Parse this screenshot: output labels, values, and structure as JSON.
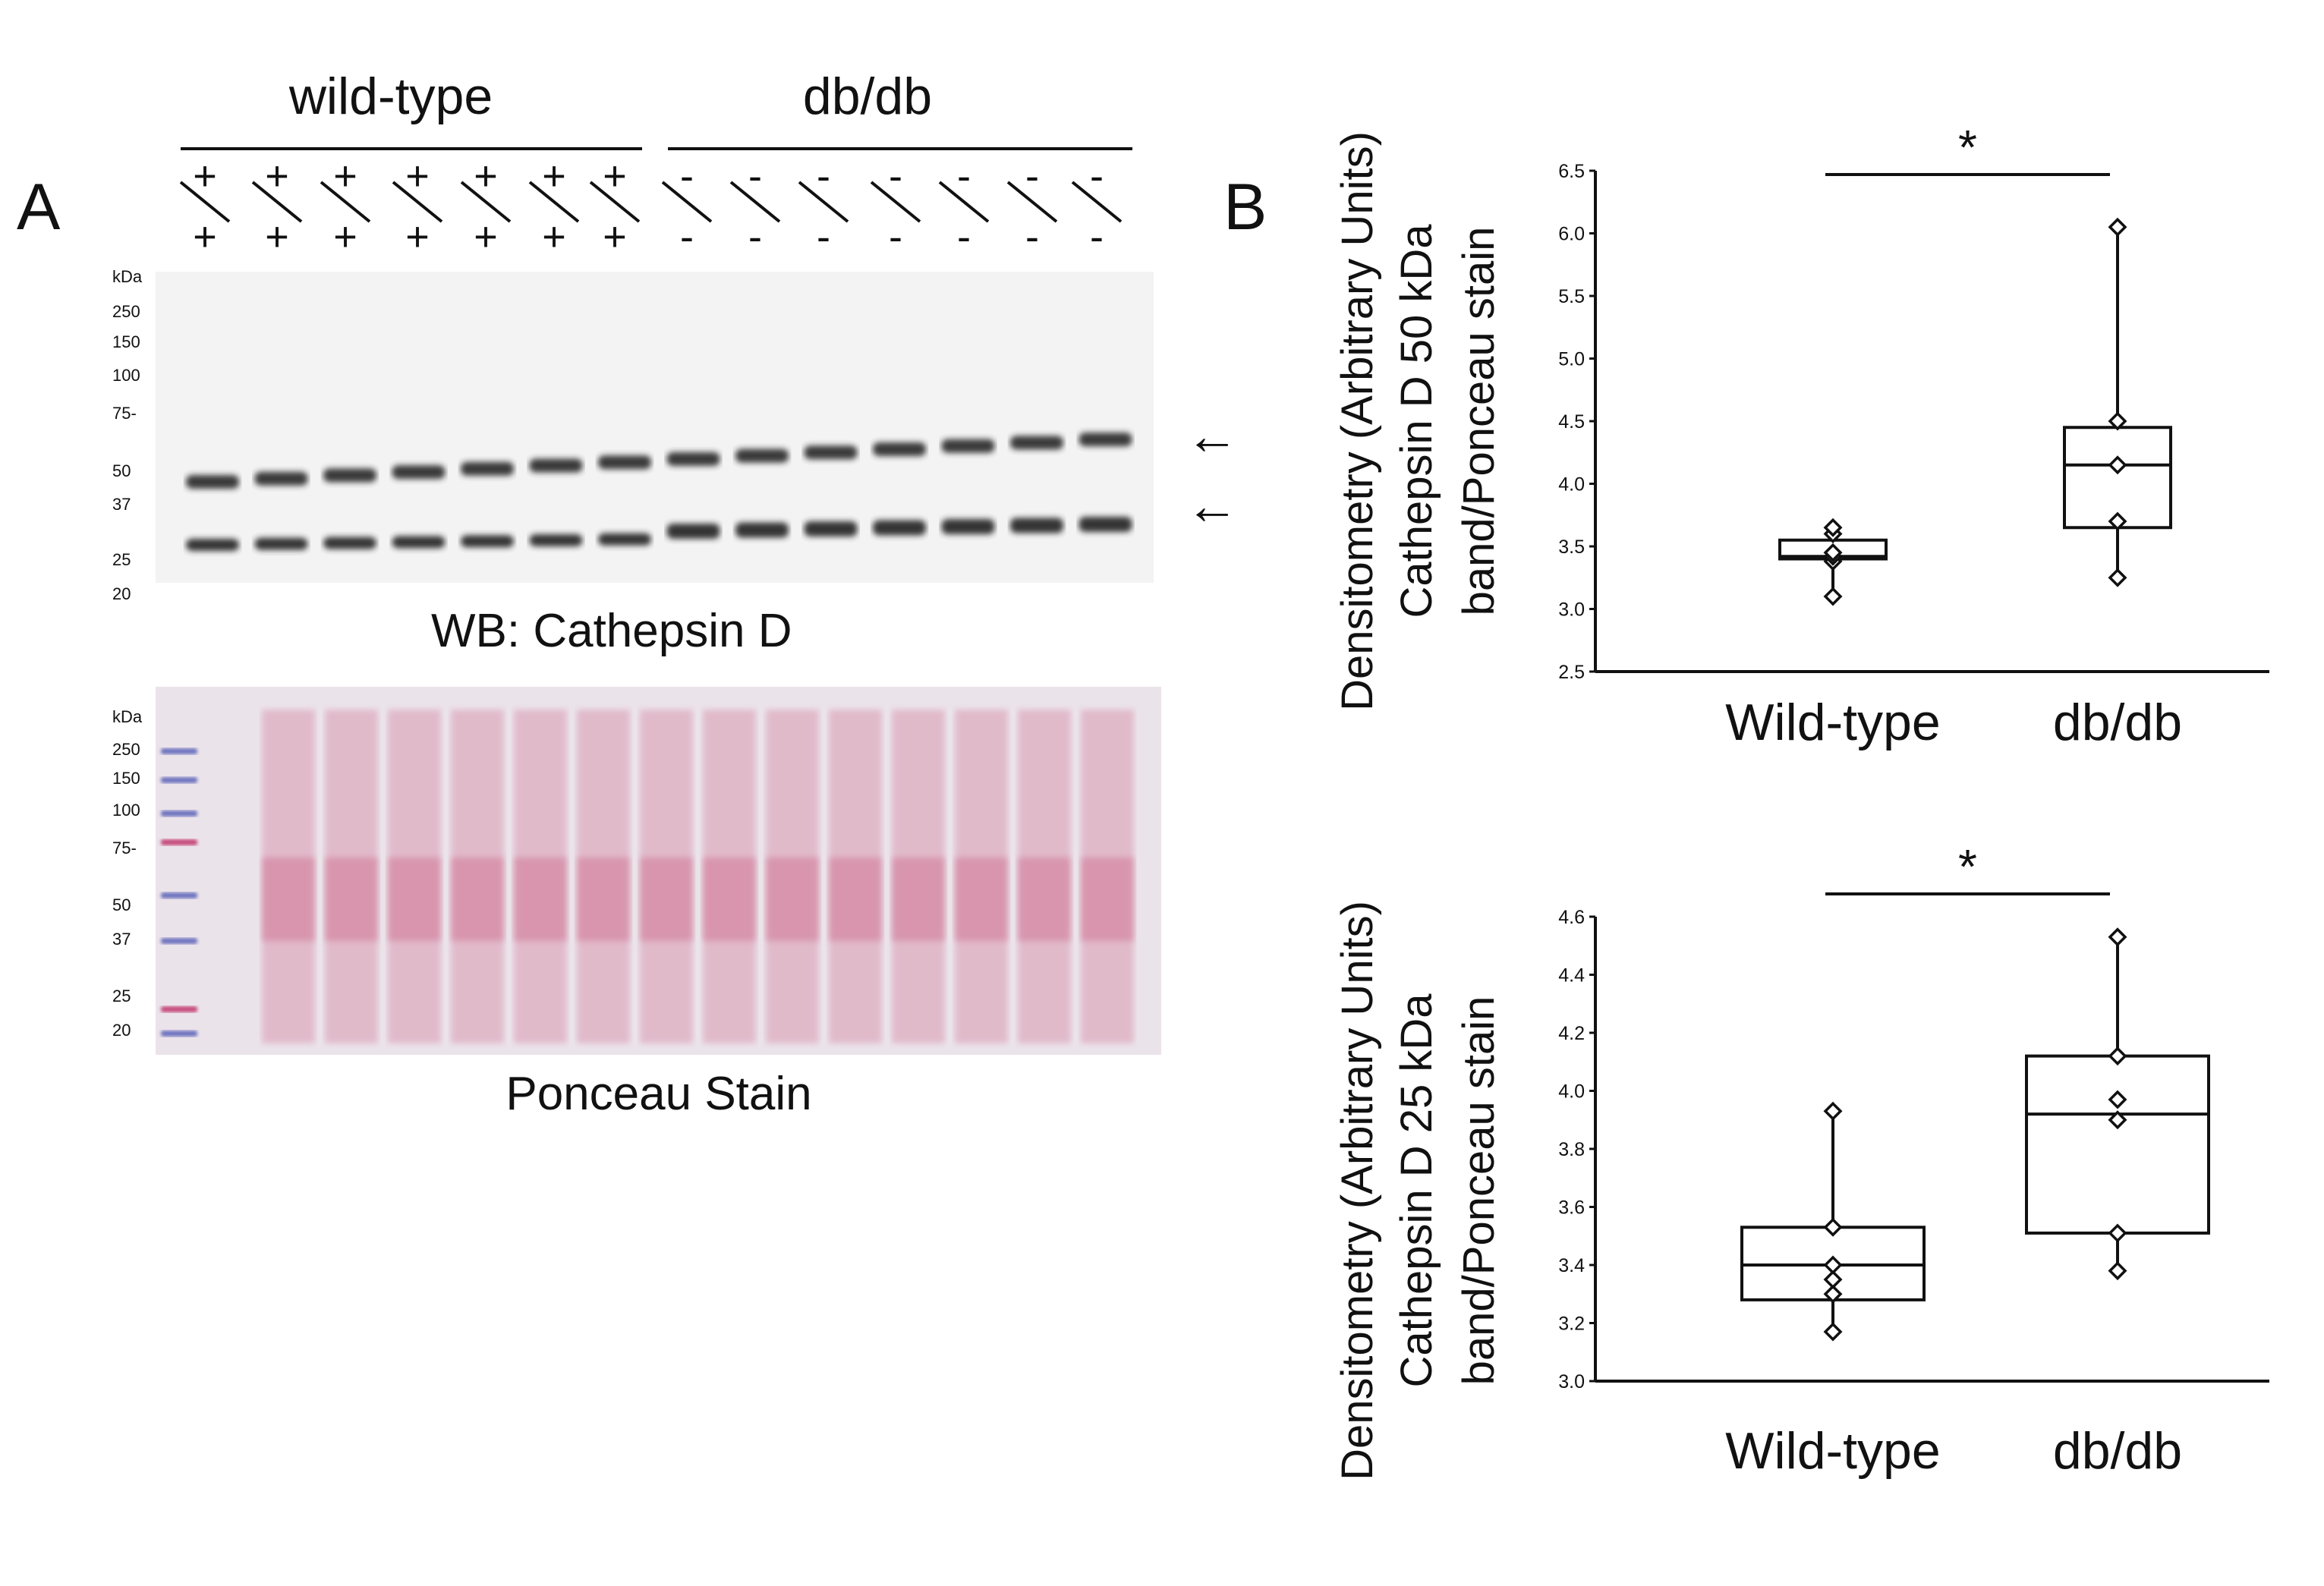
{
  "panel_a": {
    "label": "A",
    "group_wt": "wild-type",
    "group_db": "db/db",
    "genotype_wt_top": "+",
    "genotype_wt_bottom": "+",
    "genotype_db_top": "-",
    "genotype_db_bottom": "-",
    "lanes_per_group": 7,
    "kda_label": "kDa",
    "wb_markers": [
      "250",
      "150",
      "100",
      "75",
      "50",
      "37",
      "25",
      "20"
    ],
    "ponceau_markers": [
      "250",
      "150",
      "100",
      "75",
      "50",
      "37",
      "25",
      "20"
    ],
    "wb_caption": "WB:  Cathepsin D",
    "ponceau_caption": "Ponceau Stain",
    "arrow_glyph": "←",
    "colors": {
      "blot_bg": "#f2f2f2",
      "band": "#2a2a2a",
      "ponceau": "#c8527a",
      "marker_blue": "#5a62b8",
      "marker_pink": "#c0306a"
    }
  },
  "panel_b": {
    "label": "B"
  },
  "chart_data": [
    {
      "type": "box",
      "ylabel_lines": [
        "Densitometry (Arbitrary Units)",
        "Cathepsin D 50 kDa",
        "band/Ponceau stain"
      ],
      "categories": [
        "Wild-type",
        "db/db"
      ],
      "ylim": [
        2.5,
        6.5
      ],
      "yticks": [
        "2.5",
        "3.0",
        "3.5",
        "4.0",
        "4.5",
        "5.0",
        "5.5",
        "6.0",
        "6.5"
      ],
      "boxes": [
        {
          "name": "Wild-type",
          "min": 3.1,
          "q1": 3.4,
          "median": 3.42,
          "q3": 3.55,
          "max": 3.65,
          "points": [
            3.1,
            3.38,
            3.42,
            3.45,
            3.6,
            3.65
          ]
        },
        {
          "name": "db/db",
          "min": 3.25,
          "q1": 3.65,
          "median": 4.15,
          "q3": 4.45,
          "max": 6.05,
          "points": [
            3.25,
            3.7,
            4.15,
            4.5,
            6.05
          ]
        }
      ],
      "significance": "*"
    },
    {
      "type": "box",
      "ylabel_lines": [
        "Densitometry (Arbitrary Units)",
        "Cathepsin D 25 kDa",
        "band/Ponceau stain"
      ],
      "categories": [
        "Wild-type",
        "db/db"
      ],
      "ylim": [
        3.0,
        4.6
      ],
      "yticks": [
        "3.0",
        "3.2",
        "3.4",
        "3.6",
        "3.8",
        "4.0",
        "4.2",
        "4.4",
        "4.6"
      ],
      "boxes": [
        {
          "name": "Wild-type",
          "min": 3.17,
          "q1": 3.28,
          "median": 3.4,
          "q3": 3.53,
          "max": 3.93,
          "points": [
            3.17,
            3.3,
            3.35,
            3.4,
            3.53,
            3.93
          ]
        },
        {
          "name": "db/db",
          "min": 3.38,
          "q1": 3.51,
          "median": 3.92,
          "q3": 4.12,
          "max": 4.53,
          "points": [
            3.38,
            3.51,
            3.9,
            3.97,
            4.12,
            4.53
          ]
        }
      ],
      "significance": "*"
    }
  ]
}
